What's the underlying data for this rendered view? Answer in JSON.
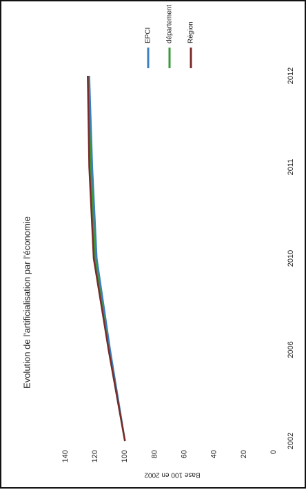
{
  "chart_data": {
    "type": "line",
    "title": "Evolution de l'artificialisation par l'économie",
    "ylabel": "Base 100 en 2002",
    "categories": [
      "2002",
      "2006",
      "2010",
      "2011",
      "2012"
    ],
    "series": [
      {
        "name": "EPCI",
        "color": "#3b7fc4",
        "values": [
          100,
          110,
          119,
          122,
          124
        ]
      },
      {
        "name": "département",
        "color": "#3a9a3a",
        "values": [
          100,
          111,
          120,
          123,
          125
        ]
      },
      {
        "name": "Région",
        "color": "#7a2a2a",
        "values": [
          100,
          111,
          121,
          124,
          125
        ]
      }
    ],
    "ylim": [
      0,
      140
    ],
    "yticks": [
      0,
      20,
      40,
      60,
      80,
      100,
      120,
      140
    ],
    "grid": false,
    "legend": "right"
  }
}
